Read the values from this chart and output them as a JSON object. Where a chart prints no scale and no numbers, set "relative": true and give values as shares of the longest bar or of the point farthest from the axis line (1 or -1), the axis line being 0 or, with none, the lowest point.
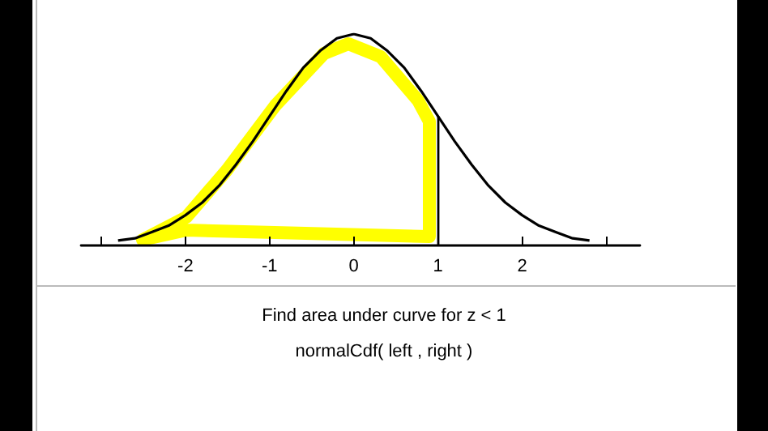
{
  "chart_data": {
    "type": "line",
    "relative": true,
    "x": [
      -2.8,
      -2.6,
      -2.4,
      -2.2,
      -2,
      -1.8,
      -1.6,
      -1.4,
      -1.2,
      -1,
      -0.8,
      -0.6,
      -0.4,
      -0.2,
      0,
      0.2,
      0.4,
      0.6,
      0.8,
      1,
      1.2,
      1.4,
      1.6,
      1.8,
      2,
      2.2,
      2.4,
      2.6,
      2.8
    ],
    "series": [
      {
        "color": "#000000",
        "values": [
          0.02,
          0.03,
          0.06,
          0.09,
          0.14,
          0.2,
          0.28,
          0.38,
          0.49,
          0.61,
          0.73,
          0.84,
          0.92,
          0.98,
          1,
          0.98,
          0.92,
          0.84,
          0.73,
          0.61,
          0.49,
          0.38,
          0.28,
          0.2,
          0.14,
          0.09,
          0.06,
          0.03,
          0.02
        ]
      }
    ],
    "xlim": [
      -3.24,
      3.4
    ],
    "xticks": [
      {
        "value": -3,
        "label": null
      },
      -2,
      -1,
      0,
      1,
      2,
      {
        "value": 3,
        "label": null
      }
    ],
    "tick_labels": "x",
    "grid": false,
    "marker": "none",
    "line_style": "solid",
    "ref_lines": [
      {
        "axis": "x",
        "value": 1,
        "color": "#000000"
      }
    ],
    "annotations": [
      "Find area under curve for z < 1",
      "normalCdf( left , right )"
    ]
  }
}
